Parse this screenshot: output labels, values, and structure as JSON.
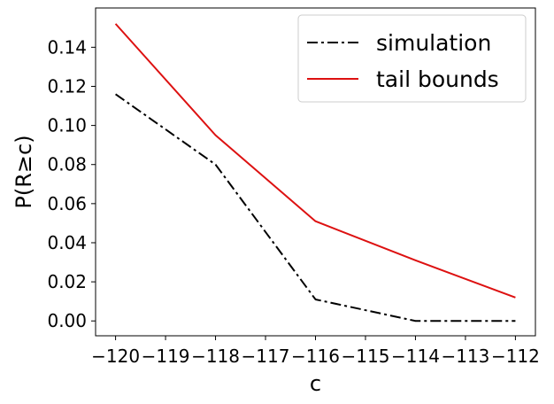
{
  "chart_data": {
    "type": "line",
    "title": "",
    "xlabel": "c",
    "ylabel": "P(R≥c)",
    "xlim": [
      -120.4,
      -111.6
    ],
    "ylim": [
      -0.0076,
      0.1601
    ],
    "xticks": [
      -120,
      -119,
      -118,
      -117,
      -116,
      -115,
      -114,
      -113,
      -112
    ],
    "xtick_labels": [
      "−120",
      "−119",
      "−118",
      "−117",
      "−116",
      "−115",
      "−114",
      "−113",
      "−112"
    ],
    "yticks": [
      0.0,
      0.02,
      0.04,
      0.06,
      0.08,
      0.1,
      0.12,
      0.14
    ],
    "ytick_labels": [
      "0.00",
      "0.02",
      "0.04",
      "0.06",
      "0.08",
      "0.10",
      "0.12",
      "0.14"
    ],
    "grid": false,
    "legend_position": "top-right",
    "series": [
      {
        "name": "simulation",
        "color": "#000000",
        "style": "dashdot",
        "x": [
          -120,
          -118,
          -116,
          -114,
          -112
        ],
        "y": [
          0.116,
          0.08,
          0.011,
          0.0,
          0.0
        ]
      },
      {
        "name": "tail bounds",
        "color": "#dd1111",
        "style": "solid",
        "x": [
          -120,
          -118,
          -116,
          -114,
          -112
        ],
        "y": [
          0.152,
          0.095,
          0.051,
          0.031,
          0.012
        ]
      }
    ]
  }
}
